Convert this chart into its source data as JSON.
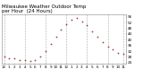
{
  "title": "Milwaukee Weather Outdoor Temp",
  "title2": "per Hour",
  "title3": "(24 Hours)",
  "background_color": "#ffffff",
  "plot_bg_color": "#ffffff",
  "grid_color": "#aaaaaa",
  "dot_color": "#ff0000",
  "dot_color2": "#000000",
  "hours": [
    0,
    1,
    2,
    3,
    4,
    5,
    6,
    7,
    8,
    9,
    10,
    11,
    12,
    13,
    14,
    15,
    16,
    17,
    18,
    19,
    20,
    21,
    22,
    23
  ],
  "temps": [
    28,
    27,
    27,
    26,
    26,
    25,
    26,
    28,
    32,
    37,
    42,
    47,
    51,
    54,
    55,
    53,
    50,
    46,
    42,
    38,
    35,
    33,
    31,
    30
  ],
  "ylim": [
    23,
    58
  ],
  "xtick_labels": [
    "12",
    "1",
    "2",
    "3",
    "4",
    "5",
    "6",
    "7",
    "8",
    "9",
    "10",
    "11",
    "12",
    "1",
    "2",
    "3",
    "4",
    "5",
    "6",
    "7",
    "8",
    "9",
    "10",
    "11"
  ],
  "ytick_vals": [
    24,
    28,
    32,
    36,
    40,
    44,
    48,
    52,
    56
  ],
  "title_fontsize": 4.0,
  "tick_fontsize": 3.0,
  "marker_size": 1.5,
  "vgrid_positions": [
    0,
    4,
    8,
    12,
    16,
    20,
    23
  ]
}
